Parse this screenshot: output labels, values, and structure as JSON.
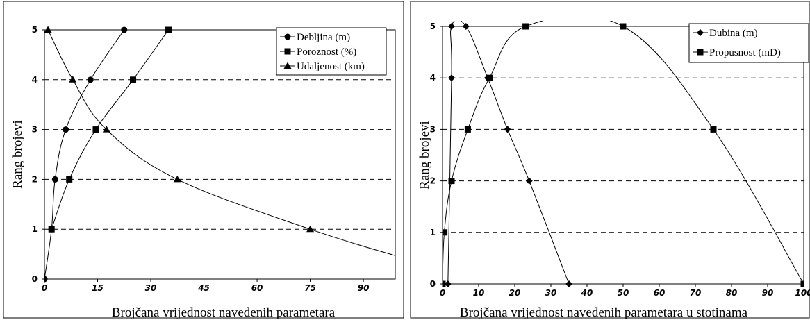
{
  "chart_data": [
    {
      "type": "line",
      "title": "",
      "xlabel": "Brojčana vrijednost navedenih parametara",
      "ylabel": "Rang brojevi",
      "xlim": [
        0,
        99
      ],
      "ylim": [
        0,
        5
      ],
      "xticks": [
        "0",
        "15",
        "30",
        "45",
        "60",
        "75",
        "90"
      ],
      "yticks": [
        "0",
        "1",
        "2",
        "3",
        "4",
        "5"
      ],
      "grid": "horizontal dashed",
      "legend_position": "top-right",
      "series": [
        {
          "name": "Debljina (m)",
          "marker": "circle",
          "x": [
            0,
            2,
            3,
            6,
            13,
            22.5
          ],
          "y": [
            0,
            1,
            2,
            3,
            4,
            5
          ]
        },
        {
          "name": "Poroznost (%)",
          "marker": "square",
          "x": [
            2,
            7,
            14.5,
            25,
            35
          ],
          "y": [
            1,
            2,
            3,
            4,
            5
          ]
        },
        {
          "name": "Udaljenost (km)",
          "marker": "triangle",
          "x": [
            1,
            8,
            17.5,
            37.5,
            75
          ],
          "y": [
            5,
            4,
            3,
            2,
            1
          ],
          "curve_extension": {
            "x": [
              99
            ],
            "y": [
              0.47
            ]
          }
        }
      ]
    },
    {
      "type": "line",
      "title": "",
      "xlabel": "Brojčana vrijednost navedenih parametara u stotinama",
      "ylabel": "Rang brojevi",
      "xlim": [
        0,
        100
      ],
      "ylim": [
        0,
        5
      ],
      "xticks": [
        "0",
        "10",
        "20",
        "30",
        "40",
        "50",
        "60",
        "70",
        "80",
        "90",
        "100"
      ],
      "yticks": [
        "0",
        "1",
        "2",
        "3",
        "4",
        "5"
      ],
      "grid": "horizontal dashed",
      "legend_position": "top-right",
      "series": [
        {
          "name": "Dubina (m)",
          "marker": "diamond",
          "x": [
            1.5,
            2.5,
            2.5,
            6.5,
            12.5,
            18,
            24,
            35
          ],
          "y": [
            0,
            4,
            5,
            5,
            4,
            3,
            2,
            0
          ]
        },
        {
          "name": "Propusnost (mD)",
          "marker": "square",
          "x": [
            0,
            0.5,
            2.5,
            7,
            13,
            23,
            50,
            75,
            100
          ],
          "y": [
            0,
            1,
            2,
            3,
            4,
            5,
            5,
            3,
            0
          ]
        }
      ]
    }
  ]
}
